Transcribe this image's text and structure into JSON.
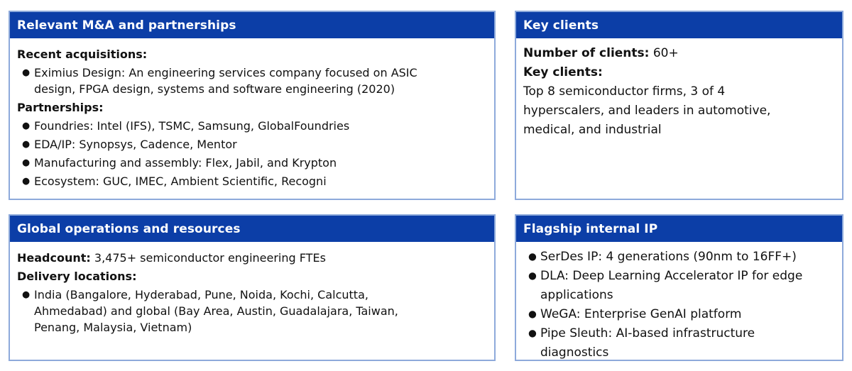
{
  "colors": {
    "header_bg": "#0c3ea7",
    "header_text": "#ffffff",
    "panel_border": "#8eaadb",
    "body_text": "#111111",
    "page_bg": "#ffffff"
  },
  "panels": [
    {
      "id": "ma-partnerships",
      "title": "Relevant M&A and partnerships",
      "items": [
        {
          "type": "heading",
          "text": "Recent acquisitions:"
        },
        {
          "type": "bullet",
          "text": "Eximius Design: An engineering services company focused on ASIC\ndesign, FPGA design, systems and software engineering (2020)"
        },
        {
          "type": "heading",
          "text": "Partnerships:"
        },
        {
          "type": "bullet",
          "text": "Foundries: Intel (IFS), TSMC, Samsung, GlobalFoundries"
        },
        {
          "type": "bullet",
          "text": "EDA/IP: Synopsys, Cadence, Mentor"
        },
        {
          "type": "bullet",
          "text": "Manufacturing and assembly: Flex, Jabil, and Krypton"
        },
        {
          "type": "bullet",
          "text": "Ecosystem: GUC, IMEC, Ambient Scientific, Recogni"
        }
      ]
    },
    {
      "id": "key-clients",
      "title": "Key clients",
      "items": [
        {
          "type": "labeled",
          "label": "Number of clients:",
          "text": " 60+"
        },
        {
          "type": "heading",
          "text": "Key clients:"
        },
        {
          "type": "text",
          "text": "Top 8 semiconductor firms, 3 of 4\nhyperscalers, and leaders in automotive,\nmedical, and industrial"
        }
      ]
    },
    {
      "id": "global-operations",
      "title": "Global operations and resources",
      "items": [
        {
          "type": "labeled",
          "label": "Headcount:",
          "text": " 3,475+ semiconductor engineering FTEs"
        },
        {
          "type": "heading",
          "text": "Delivery locations:"
        },
        {
          "type": "bullet",
          "text": "India (Bangalore, Hyderabad, Pune, Noida, Kochi, Calcutta,\nAhmedabad) and global (Bay Area, Austin, Guadalajara, Taiwan,\nPenang, Malaysia, Vietnam)"
        }
      ]
    },
    {
      "id": "flagship-ip",
      "title": "Flagship internal IP",
      "items": [
        {
          "type": "bullet",
          "text": "SerDes IP: 4 generations (90nm to 16FF+)"
        },
        {
          "type": "bullet",
          "text": "DLA: Deep Learning Accelerator IP for edge\napplications"
        },
        {
          "type": "bullet",
          "text": "WeGA: Enterprise GenAI platform"
        },
        {
          "type": "bullet",
          "text": "Pipe Sleuth: AI-based infrastructure\ndiagnostics"
        }
      ]
    }
  ]
}
